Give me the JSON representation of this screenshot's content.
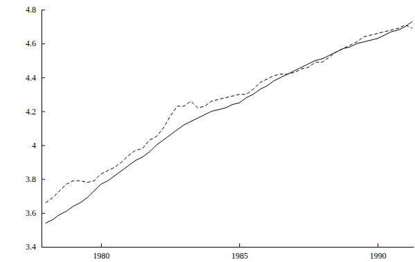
{
  "chart_data": {
    "type": "line",
    "x": [
      1978.0,
      1978.25,
      1978.5,
      1978.75,
      1979.0,
      1979.25,
      1979.5,
      1979.75,
      1980.0,
      1980.25,
      1980.5,
      1980.75,
      1981.0,
      1981.25,
      1981.5,
      1981.75,
      1982.0,
      1982.25,
      1982.5,
      1982.75,
      1983.0,
      1983.25,
      1983.5,
      1983.75,
      1984.0,
      1984.25,
      1984.5,
      1984.75,
      1985.0,
      1985.25,
      1985.5,
      1985.75,
      1986.0,
      1986.25,
      1986.5,
      1986.75,
      1987.0,
      1987.25,
      1987.5,
      1987.75,
      1988.0,
      1988.25,
      1988.5,
      1988.75,
      1989.0,
      1989.25,
      1989.5,
      1989.75,
      1990.0,
      1990.25,
      1990.5,
      1990.75,
      1991.0,
      1991.25
    ],
    "series": [
      {
        "color": "#000000",
        "line_style": "solid",
        "values": [
          3.54,
          3.56,
          3.59,
          3.61,
          3.64,
          3.66,
          3.69,
          3.73,
          3.77,
          3.79,
          3.82,
          3.85,
          3.88,
          3.91,
          3.93,
          3.96,
          4.0,
          4.03,
          4.06,
          4.09,
          4.12,
          4.14,
          4.16,
          4.18,
          4.2,
          4.21,
          4.22,
          4.24,
          4.25,
          4.28,
          4.3,
          4.33,
          4.35,
          4.38,
          4.4,
          4.42,
          4.44,
          4.46,
          4.48,
          4.5,
          4.51,
          4.53,
          4.55,
          4.57,
          4.58,
          4.6,
          4.61,
          4.62,
          4.63,
          4.65,
          4.67,
          4.68,
          4.7,
          4.73
        ]
      },
      {
        "color": "#000000",
        "line_style": "dashed",
        "values": [
          3.66,
          3.69,
          3.73,
          3.77,
          3.79,
          3.79,
          3.78,
          3.79,
          3.83,
          3.85,
          3.87,
          3.9,
          3.94,
          3.97,
          3.98,
          4.03,
          4.05,
          4.1,
          4.17,
          4.23,
          4.23,
          4.26,
          4.22,
          4.23,
          4.26,
          4.27,
          4.28,
          4.29,
          4.3,
          4.3,
          4.33,
          4.37,
          4.39,
          4.41,
          4.42,
          4.42,
          4.43,
          4.45,
          4.46,
          4.49,
          4.49,
          4.52,
          4.55,
          4.57,
          4.59,
          4.61,
          4.64,
          4.65,
          4.66,
          4.67,
          4.68,
          4.69,
          4.71,
          4.69
        ]
      }
    ],
    "xlim": [
      1977.85,
      1991.3
    ],
    "xticks": [
      1980,
      1985,
      1990
    ],
    "ylim": [
      3.4,
      4.8
    ],
    "yticks": [
      3.4,
      3.6,
      3.8,
      4,
      4.2,
      4.4,
      4.6,
      4.8
    ],
    "grid": false
  }
}
